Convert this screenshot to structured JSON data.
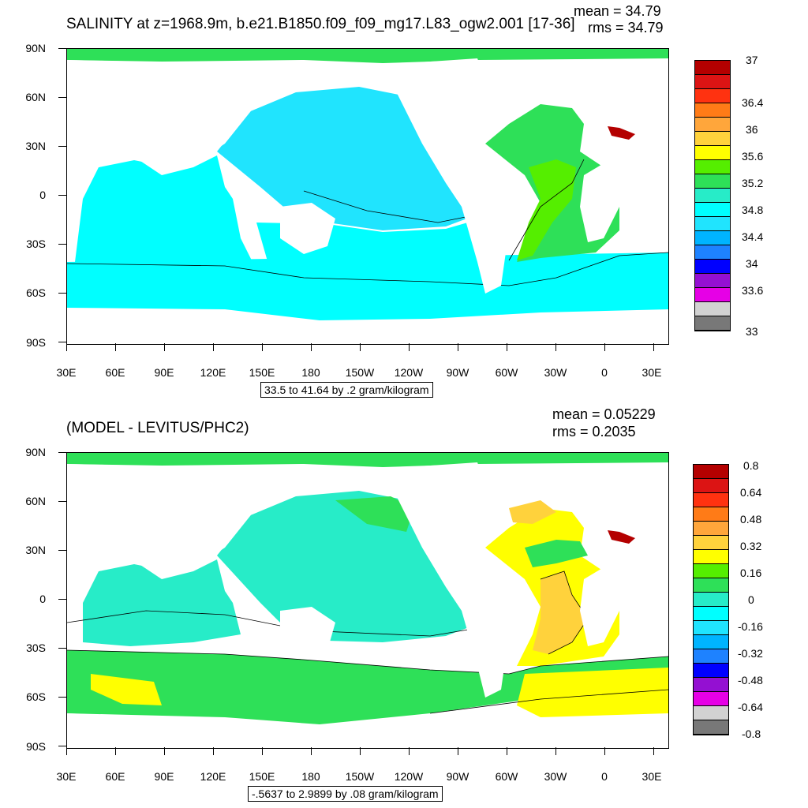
{
  "top": {
    "title": "SALINITY at z=1968.9m, b.e21.B1850.f09_f09_mg17.L83_ogw2.001 [17-36]",
    "mean": "mean = 34.79",
    "rms": "rms = 34.79",
    "range": "33.5 to 41.64 by .2 gram/kilogram",
    "colorbar_labels": [
      "37",
      "36.4",
      "36",
      "35.6",
      "35.2",
      "34.8",
      "34.4",
      "34",
      "33.6",
      "33"
    ],
    "colorbar_colors": [
      "#b40000",
      "#dc1414",
      "#ff3210",
      "#ff7b17",
      "#ffa63b",
      "#ffd23c",
      "#ffff00",
      "#55ee00",
      "#2ee058",
      "#27ecc8",
      "#00ffff",
      "#20e4fe",
      "#00b4ff",
      "#1e82ff",
      "#0000ff",
      "#9410d2",
      "#e600e6",
      "#d2d2d2",
      "#787878"
    ]
  },
  "bottom": {
    "title": "(MODEL - LEVITUS/PHC2)",
    "mean": "mean = 0.05229",
    "rms": "rms = 0.2035",
    "range": "-.5637 to 2.9899 by .08 gram/kilogram",
    "colorbar_labels": [
      "0.8",
      "0.64",
      "0.48",
      "0.32",
      "0.16",
      "0",
      "-0.16",
      "-0.32",
      "-0.48",
      "-0.64",
      "-0.8"
    ],
    "colorbar_colors": [
      "#b40000",
      "#dc1414",
      "#ff3210",
      "#ff7b17",
      "#ffa63b",
      "#ffd23c",
      "#ffff00",
      "#55ee00",
      "#2ee058",
      "#27ecc8",
      "#00ffff",
      "#20e4fe",
      "#00b4ff",
      "#1e82ff",
      "#0000ff",
      "#9410d2",
      "#e600e6",
      "#d2d2d2",
      "#787878"
    ]
  },
  "axes": {
    "lat_labels": [
      "90N",
      "60N",
      "30N",
      "0",
      "30S",
      "60S",
      "90S"
    ],
    "lon_labels": [
      "30E",
      "60E",
      "90E",
      "120E",
      "150E",
      "180",
      "150W",
      "120W",
      "90W",
      "60W",
      "30W",
      "0",
      "30E"
    ]
  },
  "colors": {
    "pacific_top": "#20e4fe",
    "southern_top": "#00ffff",
    "atlantic_top": "#2ee058",
    "arctic": "#2ee058",
    "atlantic_high": "#55ee00",
    "mediterranean": "#b40000",
    "land": "#ffffff"
  }
}
